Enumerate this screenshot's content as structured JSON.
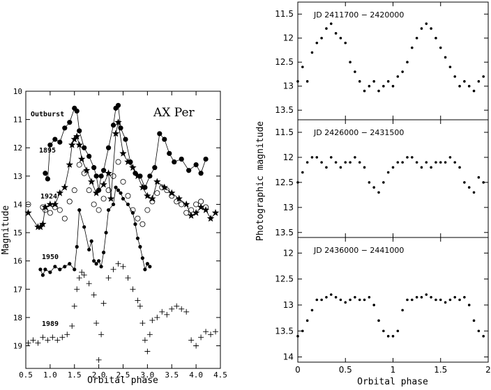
{
  "chart_data": [
    {
      "type": "scatter",
      "title": "AX Per",
      "xlabel": "Orbital phase",
      "ylabel": "Magnitude",
      "xlim": [
        0.5,
        4.5
      ],
      "ylim": [
        19.8,
        10
      ],
      "y_inverted": true,
      "grid": false,
      "x_ticks": [
        "0.5",
        "1.0",
        "1.5",
        "2.0",
        "2.5",
        "3.0",
        "3.5",
        "4.0",
        "4.5"
      ],
      "y_ticks": [
        "10",
        "11",
        "12",
        "13",
        "14",
        "15",
        "16",
        "17",
        "18",
        "19"
      ],
      "annotations": [
        "Outburst",
        "1895",
        "1924",
        "1950",
        "1989"
      ],
      "series": [
        {
          "name": "Outburst",
          "marker": "filled-circle",
          "connected": true,
          "x": [
            0.9,
            0.95,
            1.0,
            1.1,
            1.2,
            1.3,
            1.4,
            1.5,
            1.55,
            1.6,
            1.7,
            1.8,
            1.9,
            1.95,
            2.0,
            2.05,
            2.1,
            2.2,
            2.3,
            2.35,
            2.4,
            2.45,
            2.55,
            2.65,
            2.75,
            2.85,
            2.95,
            3.05,
            3.15,
            3.25,
            3.35,
            3.45,
            3.55,
            3.7,
            3.85,
            4.0,
            4.1,
            4.2
          ],
          "y": [
            12.9,
            13.1,
            11.9,
            11.7,
            11.8,
            11.3,
            11.1,
            10.6,
            10.7,
            11.4,
            12.0,
            12.3,
            12.7,
            13.0,
            13.5,
            13.0,
            12.8,
            12.0,
            11.2,
            10.6,
            10.5,
            11.3,
            11.7,
            12.5,
            12.9,
            13.0,
            13.4,
            13.0,
            12.7,
            11.5,
            11.7,
            12.2,
            12.5,
            12.4,
            12.8,
            12.6,
            12.9,
            12.4
          ]
        },
        {
          "name": "1895",
          "marker": "star",
          "connected": true,
          "x": [
            0.55,
            0.75,
            0.8,
            0.85,
            0.9,
            1.0,
            1.1,
            1.2,
            1.3,
            1.4,
            1.45,
            1.5,
            1.55,
            1.6,
            1.65,
            1.75,
            1.85,
            1.95,
            2.1,
            2.2,
            2.25,
            2.35,
            2.4,
            2.5,
            2.6,
            2.7,
            2.8,
            2.9,
            3.0,
            3.1,
            3.2,
            3.35,
            3.5,
            3.65,
            3.8,
            3.9,
            4.0,
            4.1,
            4.2,
            4.3,
            4.4
          ],
          "y": [
            14.3,
            14.8,
            14.8,
            14.7,
            14.1,
            14.0,
            14.0,
            13.6,
            13.4,
            12.6,
            11.9,
            11.7,
            11.6,
            11.9,
            12.4,
            12.8,
            13.2,
            13.6,
            13.3,
            12.9,
            13.8,
            11.5,
            11.1,
            12.2,
            12.5,
            12.7,
            13.0,
            13.4,
            13.7,
            13.8,
            13.2,
            13.4,
            13.6,
            13.8,
            14.0,
            14.4,
            14.3,
            14.1,
            14.2,
            14.5,
            14.3
          ]
        },
        {
          "name": "1924",
          "marker": "open-circle",
          "connected": false,
          "x": [
            0.55,
            0.85,
            0.9,
            1.0,
            1.1,
            1.2,
            1.3,
            1.4,
            1.5,
            1.6,
            1.7,
            1.8,
            1.9,
            2.0,
            2.1,
            2.2,
            2.3,
            2.4,
            2.5,
            2.6,
            2.7,
            2.8,
            2.9,
            3.0,
            3.1,
            3.2,
            3.3,
            3.4,
            3.5,
            3.6,
            3.7,
            3.8,
            3.9,
            4.0,
            4.1,
            4.2
          ],
          "y": [
            14.0,
            14.1,
            14.2,
            14.3,
            14.1,
            14.2,
            14.5,
            13.9,
            13.5,
            12.6,
            12.9,
            13.5,
            14.0,
            14.2,
            13.8,
            13.5,
            13.0,
            12.5,
            13.2,
            13.7,
            14.2,
            14.5,
            14.7,
            14.2,
            13.9,
            13.6,
            13.4,
            13.5,
            13.7,
            13.9,
            14.0,
            14.3,
            14.2,
            14.0,
            13.9,
            14.1
          ]
        },
        {
          "name": "1950",
          "marker": "filled-circle-small",
          "connected": true,
          "x": [
            0.8,
            0.85,
            0.9,
            1.0,
            1.1,
            1.2,
            1.3,
            1.4,
            1.5,
            1.55,
            1.6,
            1.7,
            1.8,
            1.85,
            1.9,
            1.95,
            2.0,
            2.05,
            2.1,
            2.15,
            2.2,
            2.3,
            2.35,
            2.4,
            2.45,
            2.5,
            2.6,
            2.7,
            2.75,
            2.8,
            2.85,
            2.9,
            2.95,
            3.0,
            3.05
          ],
          "y": [
            16.3,
            16.5,
            16.3,
            16.4,
            16.2,
            16.3,
            16.2,
            16.1,
            16.3,
            15.5,
            14.2,
            14.8,
            15.6,
            15.3,
            16.0,
            16.1,
            16.0,
            16.2,
            15.7,
            15.0,
            14.2,
            14.0,
            13.4,
            13.5,
            13.6,
            13.8,
            14.0,
            14.3,
            14.7,
            15.2,
            15.5,
            15.9,
            16.3,
            16.1,
            16.2
          ]
        },
        {
          "name": "1989",
          "marker": "plus",
          "connected": false,
          "x": [
            0.55,
            0.65,
            0.75,
            0.85,
            0.95,
            1.05,
            1.15,
            1.25,
            1.35,
            1.45,
            1.5,
            1.55,
            1.6,
            1.65,
            1.7,
            1.8,
            1.9,
            1.95,
            2.0,
            2.05,
            2.1,
            2.2,
            2.3,
            2.4,
            2.5,
            2.6,
            2.7,
            2.8,
            2.85,
            2.9,
            2.95,
            3.0,
            3.05,
            3.1,
            3.2,
            3.3,
            3.4,
            3.5,
            3.6,
            3.7,
            3.8,
            3.9,
            4.0,
            4.1,
            4.2,
            4.3,
            4.4
          ],
          "y": [
            18.9,
            18.8,
            18.9,
            18.7,
            18.8,
            18.7,
            18.8,
            18.7,
            18.6,
            18.3,
            17.6,
            17.0,
            16.6,
            16.4,
            16.5,
            16.8,
            17.2,
            18.2,
            19.5,
            18.6,
            17.5,
            16.6,
            16.3,
            16.1,
            16.2,
            16.6,
            17.0,
            17.4,
            17.6,
            18.2,
            18.8,
            19.2,
            18.6,
            18.1,
            18.0,
            17.8,
            17.9,
            17.7,
            17.6,
            17.7,
            17.8,
            18.8,
            19.0,
            18.7,
            18.5,
            18.6,
            18.5
          ]
        }
      ]
    },
    {
      "type": "scatter",
      "title": "",
      "shared_ylabel": "Photographic magnitude",
      "xlabel": "Orbital phase",
      "xlim": [
        0,
        2
      ],
      "x_ticks": [
        "0",
        "0.5",
        "1",
        "1.5",
        "2"
      ],
      "grid": false,
      "panels": [
        {
          "label": "JD 2411700 − 2420000",
          "ylim": [
            13.7,
            11.25
          ],
          "y_ticks": [
            "11.5",
            "12",
            "12.5",
            "13",
            "13.5"
          ],
          "x": [
            0.0,
            0.05,
            0.1,
            0.15,
            0.2,
            0.25,
            0.3,
            0.35,
            0.4,
            0.45,
            0.5,
            0.55,
            0.6,
            0.65,
            0.7,
            0.75,
            0.8,
            0.85,
            0.9,
            0.95,
            1.0,
            1.05,
            1.1,
            1.15,
            1.2,
            1.25,
            1.3,
            1.35,
            1.4,
            1.45,
            1.5,
            1.55,
            1.6,
            1.65,
            1.7,
            1.75,
            1.8,
            1.85,
            1.9,
            1.95
          ],
          "y": [
            12.9,
            12.6,
            12.9,
            12.3,
            12.1,
            12.0,
            11.8,
            11.7,
            11.9,
            12.0,
            12.1,
            12.5,
            12.7,
            12.9,
            13.1,
            13.0,
            12.9,
            13.1,
            13.0,
            12.9,
            13.0,
            12.8,
            12.7,
            12.5,
            12.2,
            12.0,
            11.8,
            11.7,
            11.8,
            12.0,
            12.2,
            12.4,
            12.6,
            12.8,
            13.0,
            12.9,
            13.0,
            13.1,
            12.9,
            12.8
          ]
        },
        {
          "label": "JD 2426000 − 2431500",
          "ylim": [
            13.6,
            11.25
          ],
          "y_ticks": [
            "11.5",
            "12",
            "12.5",
            "13",
            "13.5"
          ],
          "x": [
            0.0,
            0.05,
            0.1,
            0.15,
            0.2,
            0.25,
            0.3,
            0.35,
            0.4,
            0.45,
            0.5,
            0.55,
            0.6,
            0.65,
            0.7,
            0.75,
            0.8,
            0.85,
            0.9,
            0.95,
            1.0,
            1.05,
            1.1,
            1.15,
            1.2,
            1.25,
            1.3,
            1.35,
            1.4,
            1.45,
            1.5,
            1.55,
            1.6,
            1.65,
            1.7,
            1.75,
            1.8,
            1.85,
            1.9,
            1.95
          ],
          "y": [
            12.5,
            12.3,
            12.1,
            12.0,
            12.0,
            12.1,
            12.2,
            12.0,
            12.1,
            12.2,
            12.1,
            12.1,
            12.0,
            12.1,
            12.2,
            12.5,
            12.6,
            12.7,
            12.5,
            12.3,
            12.2,
            12.1,
            12.1,
            12.0,
            12.0,
            12.1,
            12.2,
            12.1,
            12.2,
            12.1,
            12.1,
            12.1,
            12.0,
            12.1,
            12.2,
            12.5,
            12.6,
            12.7,
            12.4,
            12.5
          ]
        },
        {
          "label": "JD 2436000 − 2441000",
          "ylim": [
            14.1,
            11.7
          ],
          "y_ticks": [
            "12",
            "12.5",
            "13",
            "13.5",
            "14"
          ],
          "x": [
            0.0,
            0.05,
            0.1,
            0.15,
            0.2,
            0.25,
            0.3,
            0.35,
            0.4,
            0.45,
            0.5,
            0.55,
            0.6,
            0.65,
            0.7,
            0.75,
            0.8,
            0.85,
            0.9,
            0.95,
            1.0,
            1.05,
            1.1,
            1.15,
            1.2,
            1.25,
            1.3,
            1.35,
            1.4,
            1.45,
            1.5,
            1.55,
            1.6,
            1.65,
            1.7,
            1.75,
            1.8,
            1.85,
            1.9,
            1.95
          ],
          "y": [
            13.6,
            13.5,
            13.3,
            13.1,
            12.9,
            12.9,
            12.85,
            12.8,
            12.85,
            12.9,
            12.95,
            12.9,
            12.85,
            12.9,
            12.9,
            12.85,
            13.0,
            13.3,
            13.5,
            13.6,
            13.6,
            13.5,
            13.1,
            12.9,
            12.9,
            12.85,
            12.85,
            12.8,
            12.85,
            12.9,
            12.9,
            12.95,
            12.9,
            12.85,
            12.9,
            12.85,
            13.0,
            13.3,
            13.5,
            13.6
          ]
        }
      ]
    }
  ]
}
